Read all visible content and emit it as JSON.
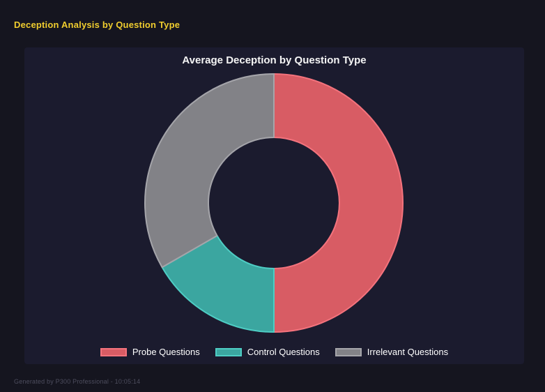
{
  "page": {
    "title": "Deception Analysis by Question Type",
    "footer": "Generated by P300 Professional - 10:05:14"
  },
  "chart_data": {
    "type": "pie",
    "subtype": "doughnut",
    "title": "Average Deception by Question Type",
    "categories": [
      "Probe Questions",
      "Control Questions",
      "Irrelevant Questions"
    ],
    "values": [
      50,
      16.7,
      33.3
    ],
    "values_unit": "percent share of donut (estimated from arc angles; no data labels shown)",
    "start_angle_deg": 0,
    "direction": "clockwise",
    "cutout_percent": 51,
    "legend_position": "bottom",
    "grid": false,
    "segment_colors": [
      {
        "name": "probe-red",
        "fill": "#d85c64",
        "border": "#f4737d"
      },
      {
        "name": "control-teal",
        "fill": "#3ba6a0",
        "border": "#4ecdc4"
      },
      {
        "name": "irrelevant-gray",
        "fill": "#828287",
        "border": "#a5a5aa"
      }
    ]
  },
  "colors": {
    "page_background": "#15151f",
    "panel_background": "#1b1b2e",
    "page_title_text": "#f0cd2e",
    "chart_title_text": "#f5f5f5",
    "legend_text": "#ffffff",
    "footer_text": "#4d4d5e"
  }
}
